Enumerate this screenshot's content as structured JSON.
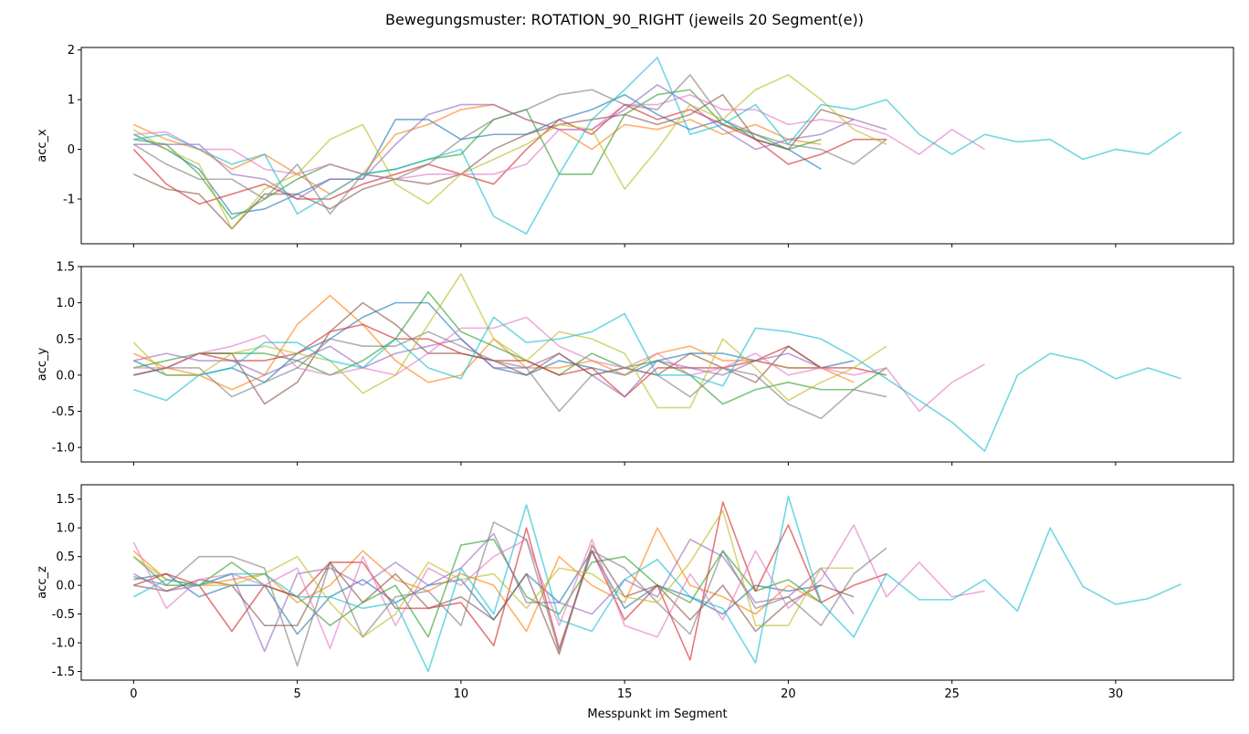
{
  "figure_title": "Bewegungsmuster: ROTATION_90_RIGHT (jeweils 20 Segment(e))",
  "xlabel": "Messpunkt im Segment",
  "x_ticks": [
    0,
    5,
    10,
    15,
    20,
    25,
    30
  ],
  "palette": [
    "#1f77b4",
    "#ff7f0e",
    "#2ca02c",
    "#d62728",
    "#9467bd",
    "#8c564b",
    "#e377c2",
    "#7f7f7f",
    "#bcbd22",
    "#17becf"
  ],
  "chart_data": [
    {
      "type": "line",
      "ylabel": "acc_x",
      "xlim": [
        -1.6,
        33.6
      ],
      "ylim": [
        -1.9,
        2.05
      ],
      "yticks": [
        -1,
        0,
        1,
        2
      ],
      "series": [
        {
          "color": "#1f77b4",
          "values": [
            0.3,
            0.0,
            -0.4,
            -1.3,
            -1.2,
            -0.9,
            -0.6,
            -0.6,
            0.6,
            0.6,
            0.2,
            0.3,
            0.3,
            0.6,
            0.8,
            1.1,
            0.7,
            0.4,
            0.6,
            0.2,
            0.0,
            -0.4
          ]
        },
        {
          "color": "#ff7f0e",
          "values": [
            0.5,
            0.2,
            0.0,
            -0.4,
            -0.1,
            -0.5,
            -0.9,
            -0.5,
            0.3,
            0.5,
            0.8,
            0.9,
            0.6,
            0.4,
            0.0,
            0.5,
            0.4,
            0.6,
            0.3,
            0.5,
            0.2,
            0.1
          ]
        },
        {
          "color": "#2ca02c",
          "values": [
            0.2,
            0.1,
            -0.5,
            -1.4,
            -1.0,
            -0.6,
            -0.3,
            -0.5,
            -0.4,
            -0.2,
            -0.1,
            0.6,
            0.8,
            -0.5,
            -0.5,
            0.7,
            1.1,
            1.2,
            0.5,
            0.3,
            0.0,
            0.2
          ]
        },
        {
          "color": "#d62728",
          "values": [
            0.0,
            -0.7,
            -1.1,
            -0.9,
            -0.7,
            -1.0,
            -1.0,
            -0.7,
            -0.5,
            -0.3,
            -0.5,
            -0.7,
            0.0,
            0.6,
            0.3,
            0.9,
            0.6,
            0.8,
            0.5,
            0.2,
            -0.3,
            -0.1,
            0.2,
            0.2
          ]
        },
        {
          "color": "#9467bd",
          "values": [
            0.1,
            0.1,
            0.1,
            -0.5,
            -0.6,
            -1.0,
            -0.6,
            -0.6,
            0.1,
            0.7,
            0.9,
            0.9,
            0.6,
            0.4,
            0.4,
            0.8,
            1.3,
            0.9,
            0.4,
            0.0,
            0.2,
            0.3,
            0.6,
            0.4
          ]
        },
        {
          "color": "#8c564b",
          "values": [
            -0.5,
            -0.8,
            -0.9,
            -1.6,
            -0.9,
            -0.9,
            -1.2,
            -0.8,
            -0.6,
            -0.7,
            -0.5,
            0.0,
            0.3,
            0.5,
            0.6,
            0.7,
            0.5,
            0.7,
            1.1,
            0.2,
            0.0,
            0.8,
            0.6
          ]
        },
        {
          "color": "#e377c2",
          "values": [
            0.3,
            0.35,
            0.0,
            0.0,
            -0.4,
            -0.5,
            -0.3,
            -0.5,
            -0.6,
            -0.5,
            -0.5,
            -0.5,
            -0.3,
            0.4,
            0.4,
            0.9,
            0.9,
            1.1,
            0.8,
            0.8,
            0.5,
            0.6,
            0.5,
            0.3,
            -0.1,
            0.4,
            0.0
          ]
        },
        {
          "color": "#7f7f7f",
          "values": [
            0.1,
            -0.3,
            -0.6,
            -0.6,
            -1.0,
            -0.3,
            -1.3,
            -0.5,
            -0.6,
            -0.3,
            0.2,
            0.6,
            0.8,
            1.1,
            1.2,
            0.9,
            0.8,
            1.5,
            0.6,
            0.3,
            0.1,
            0.0,
            -0.3,
            0.2
          ]
        },
        {
          "color": "#bcbd22",
          "values": [
            0.4,
            0.0,
            -0.3,
            -1.6,
            -0.8,
            -0.5,
            0.2,
            0.5,
            -0.7,
            -1.1,
            -0.5,
            -0.2,
            0.1,
            0.5,
            0.4,
            -0.8,
            0.0,
            0.9,
            0.6,
            1.2,
            1.5,
            1.0,
            0.4,
            0.1
          ]
        },
        {
          "color": "#17becf",
          "values": [
            0.2,
            0.3,
            0.0,
            -0.3,
            -0.1,
            -1.3,
            -0.9,
            -0.5,
            -0.4,
            -0.2,
            0.0,
            -1.35,
            -1.7,
            -0.5,
            0.6,
            1.2,
            1.85,
            0.3,
            0.5,
            0.9,
            0.1,
            0.9,
            0.8,
            1.0,
            0.3,
            -0.1,
            0.3,
            0.15,
            0.2,
            -0.2,
            0.0,
            -0.1,
            0.35
          ]
        }
      ]
    },
    {
      "type": "line",
      "ylabel": "acc_y",
      "xlim": [
        -1.6,
        33.6
      ],
      "ylim": [
        -1.2,
        1.5
      ],
      "yticks": [
        -1.0,
        -0.5,
        0.0,
        0.5,
        1.0,
        1.5
      ],
      "series": [
        {
          "color": "#1f77b4",
          "values": [
            0.2,
            0.0,
            0.0,
            0.1,
            -0.1,
            0.3,
            0.5,
            0.8,
            1.0,
            1.0,
            0.5,
            0.1,
            0.0,
            0.2,
            0.1,
            0.0,
            0.2,
            0.3,
            0.3,
            0.2,
            0.1,
            0.1,
            0.2
          ]
        },
        {
          "color": "#ff7f0e",
          "values": [
            0.3,
            0.1,
            0.0,
            -0.2,
            0.0,
            0.7,
            1.1,
            0.7,
            0.2,
            -0.1,
            0.0,
            0.5,
            0.1,
            0.1,
            0.2,
            0.0,
            0.3,
            0.4,
            0.2,
            0.2,
            0.1,
            0.1,
            -0.1
          ]
        },
        {
          "color": "#2ca02c",
          "values": [
            0.1,
            0.2,
            0.3,
            0.3,
            0.3,
            0.2,
            0.0,
            0.2,
            0.5,
            1.15,
            0.6,
            0.4,
            0.2,
            0.0,
            0.3,
            0.1,
            0.2,
            0.0,
            -0.4,
            -0.2,
            -0.1,
            -0.2,
            -0.2,
            0.1
          ]
        },
        {
          "color": "#d62728",
          "values": [
            0.0,
            0.1,
            0.3,
            0.2,
            0.2,
            0.3,
            0.6,
            0.7,
            0.5,
            0.5,
            0.3,
            0.2,
            0.2,
            0.0,
            0.1,
            -0.3,
            0.1,
            0.1,
            0.1,
            0.2,
            0.4,
            0.1,
            0.1,
            0.0
          ]
        },
        {
          "color": "#9467bd",
          "values": [
            0.2,
            0.3,
            0.2,
            0.2,
            0.0,
            0.2,
            0.4,
            0.1,
            0.3,
            0.4,
            0.5,
            0.1,
            0.1,
            0.3,
            0.0,
            -0.3,
            0.2,
            0.1,
            0.0,
            0.2,
            0.3,
            0.1
          ]
        },
        {
          "color": "#8c564b",
          "values": [
            0.0,
            0.1,
            0.3,
            0.3,
            -0.4,
            -0.1,
            0.6,
            1.0,
            0.7,
            0.3,
            0.3,
            0.2,
            0.0,
            0.3,
            0.0,
            0.1,
            0.0,
            0.3,
            0.1,
            -0.1,
            0.4,
            0.1
          ]
        },
        {
          "color": "#e377c2",
          "values": [
            0.1,
            0.1,
            0.3,
            0.4,
            0.55,
            0.1,
            0.0,
            0.1,
            0.0,
            0.3,
            0.65,
            0.65,
            0.8,
            0.4,
            0.2,
            0.1,
            0.3,
            0.0,
            0.1,
            0.3,
            0.0,
            0.1,
            0.0,
            0.1,
            -0.5,
            -0.1,
            0.15
          ]
        },
        {
          "color": "#7f7f7f",
          "values": [
            0.0,
            0.1,
            0.1,
            -0.3,
            -0.1,
            0.1,
            0.5,
            0.4,
            0.4,
            0.6,
            0.4,
            0.2,
            0.1,
            -0.5,
            0.0,
            0.1,
            0.0,
            -0.3,
            0.1,
            0.0,
            -0.4,
            -0.6,
            -0.2,
            -0.3
          ]
        },
        {
          "color": "#bcbd22",
          "values": [
            0.45,
            0.0,
            0.0,
            0.3,
            0.4,
            0.3,
            0.2,
            -0.25,
            0.0,
            0.7,
            1.4,
            0.5,
            0.2,
            0.6,
            0.5,
            0.3,
            -0.45,
            -0.45,
            0.5,
            0.1,
            -0.35,
            -0.1,
            0.1,
            0.4
          ]
        },
        {
          "color": "#17becf",
          "values": [
            -0.2,
            -0.35,
            0.0,
            0.1,
            0.45,
            0.45,
            0.2,
            0.1,
            0.5,
            0.1,
            -0.05,
            0.8,
            0.45,
            0.5,
            0.6,
            0.85,
            0.0,
            0.0,
            -0.15,
            0.65,
            0.6,
            0.5,
            0.25,
            -0.05,
            -0.35,
            -0.65,
            -1.05,
            0.0,
            0.3,
            0.2,
            -0.05,
            0.1,
            -0.05
          ]
        }
      ]
    },
    {
      "type": "line",
      "ylabel": "acc_z",
      "xlim": [
        -1.6,
        33.6
      ],
      "ylim": [
        -1.65,
        1.75
      ],
      "yticks": [
        -1.5,
        -1.0,
        -0.5,
        0.0,
        0.5,
        1.0,
        1.5
      ],
      "series": [
        {
          "color": "#1f77b4",
          "values": [
            0.1,
            0.2,
            -0.2,
            0.0,
            0.0,
            -0.85,
            -0.2,
            0.1,
            -0.3,
            0.0,
            0.1,
            -0.6,
            0.2,
            -0.3,
            0.6,
            -0.4,
            0.0,
            -0.2,
            -0.5,
            0.0,
            -0.1,
            0.0
          ]
        },
        {
          "color": "#ff7f0e",
          "values": [
            0.6,
            0.1,
            0.0,
            0.1,
            0.2,
            -0.3,
            0.0,
            0.6,
            0.1,
            -0.1,
            0.2,
            0.0,
            -0.8,
            0.5,
            0.0,
            -0.3,
            1.0,
            0.0,
            -0.2,
            -0.5,
            0.0,
            -0.3
          ]
        },
        {
          "color": "#2ca02c",
          "values": [
            0.5,
            0.0,
            0.0,
            0.4,
            0.0,
            -0.2,
            -0.7,
            -0.3,
            0.0,
            -0.9,
            0.7,
            0.8,
            -0.2,
            -0.5,
            0.4,
            0.5,
            0.0,
            -0.3,
            0.6,
            -0.1,
            0.1,
            -0.3
          ]
        },
        {
          "color": "#d62728",
          "values": [
            0.0,
            0.2,
            0.0,
            -0.8,
            0.0,
            -0.2,
            0.4,
            0.4,
            -0.4,
            -0.4,
            -0.3,
            -1.05,
            1.0,
            -1.1,
            0.6,
            -0.6,
            0.0,
            -1.3,
            1.45,
            -0.1,
            1.05,
            -0.3,
            0.0,
            0.2
          ]
        },
        {
          "color": "#9467bd",
          "values": [
            0.2,
            -0.1,
            0.0,
            0.2,
            -1.15,
            0.2,
            0.3,
            0.0,
            0.4,
            0.0,
            0.3,
            0.9,
            -0.3,
            -0.3,
            -0.5,
            0.1,
            -0.2,
            0.8,
            0.5,
            -0.3,
            -0.2,
            0.3,
            -0.5
          ]
        },
        {
          "color": "#8c564b",
          "values": [
            0.0,
            -0.1,
            0.1,
            0.0,
            -0.7,
            -0.7,
            0.4,
            -0.3,
            0.2,
            -0.4,
            -0.2,
            -0.6,
            0.2,
            -1.2,
            0.7,
            -0.2,
            0.0,
            -0.6,
            0.0,
            -0.8,
            -0.3,
            0.0,
            -0.2
          ]
        },
        {
          "color": "#e377c2",
          "values": [
            0.75,
            -0.4,
            0.1,
            0.2,
            0.0,
            0.3,
            -1.1,
            0.5,
            -0.7,
            0.3,
            0.0,
            0.5,
            0.8,
            -0.7,
            0.8,
            -0.7,
            -0.9,
            0.2,
            -0.6,
            0.6,
            -0.4,
            0.1,
            1.05,
            -0.2,
            0.4,
            -0.2,
            -0.1
          ]
        },
        {
          "color": "#7f7f7f",
          "values": [
            0.15,
            0.0,
            0.5,
            0.5,
            0.3,
            -1.4,
            0.4,
            -0.9,
            -0.2,
            -0.1,
            -0.7,
            1.1,
            0.8,
            -1.15,
            0.6,
            0.3,
            -0.3,
            -0.85,
            0.6,
            -0.4,
            -0.2,
            -0.7,
            0.2,
            0.65
          ]
        },
        {
          "color": "#bcbd22",
          "values": [
            0.5,
            0.1,
            0.0,
            0.0,
            0.2,
            0.5,
            -0.3,
            -0.9,
            -0.5,
            0.4,
            0.1,
            0.2,
            -0.4,
            0.3,
            0.2,
            -0.2,
            -0.3,
            0.4,
            1.3,
            -0.7,
            -0.7,
            0.3,
            0.3
          ]
        },
        {
          "color": "#17becf",
          "values": [
            -0.2,
            0.1,
            0.0,
            0.2,
            0.2,
            -0.2,
            -0.2,
            -0.4,
            -0.3,
            -1.5,
            0.3,
            -0.5,
            1.4,
            -0.6,
            -0.8,
            0.1,
            0.45,
            -0.2,
            -0.4,
            -1.35,
            1.55,
            -0.3,
            -0.9,
            0.2,
            -0.25,
            -0.25,
            0.1,
            -0.45,
            1.0,
            -0.02,
            -0.33,
            -0.23,
            0.02
          ]
        }
      ]
    }
  ]
}
